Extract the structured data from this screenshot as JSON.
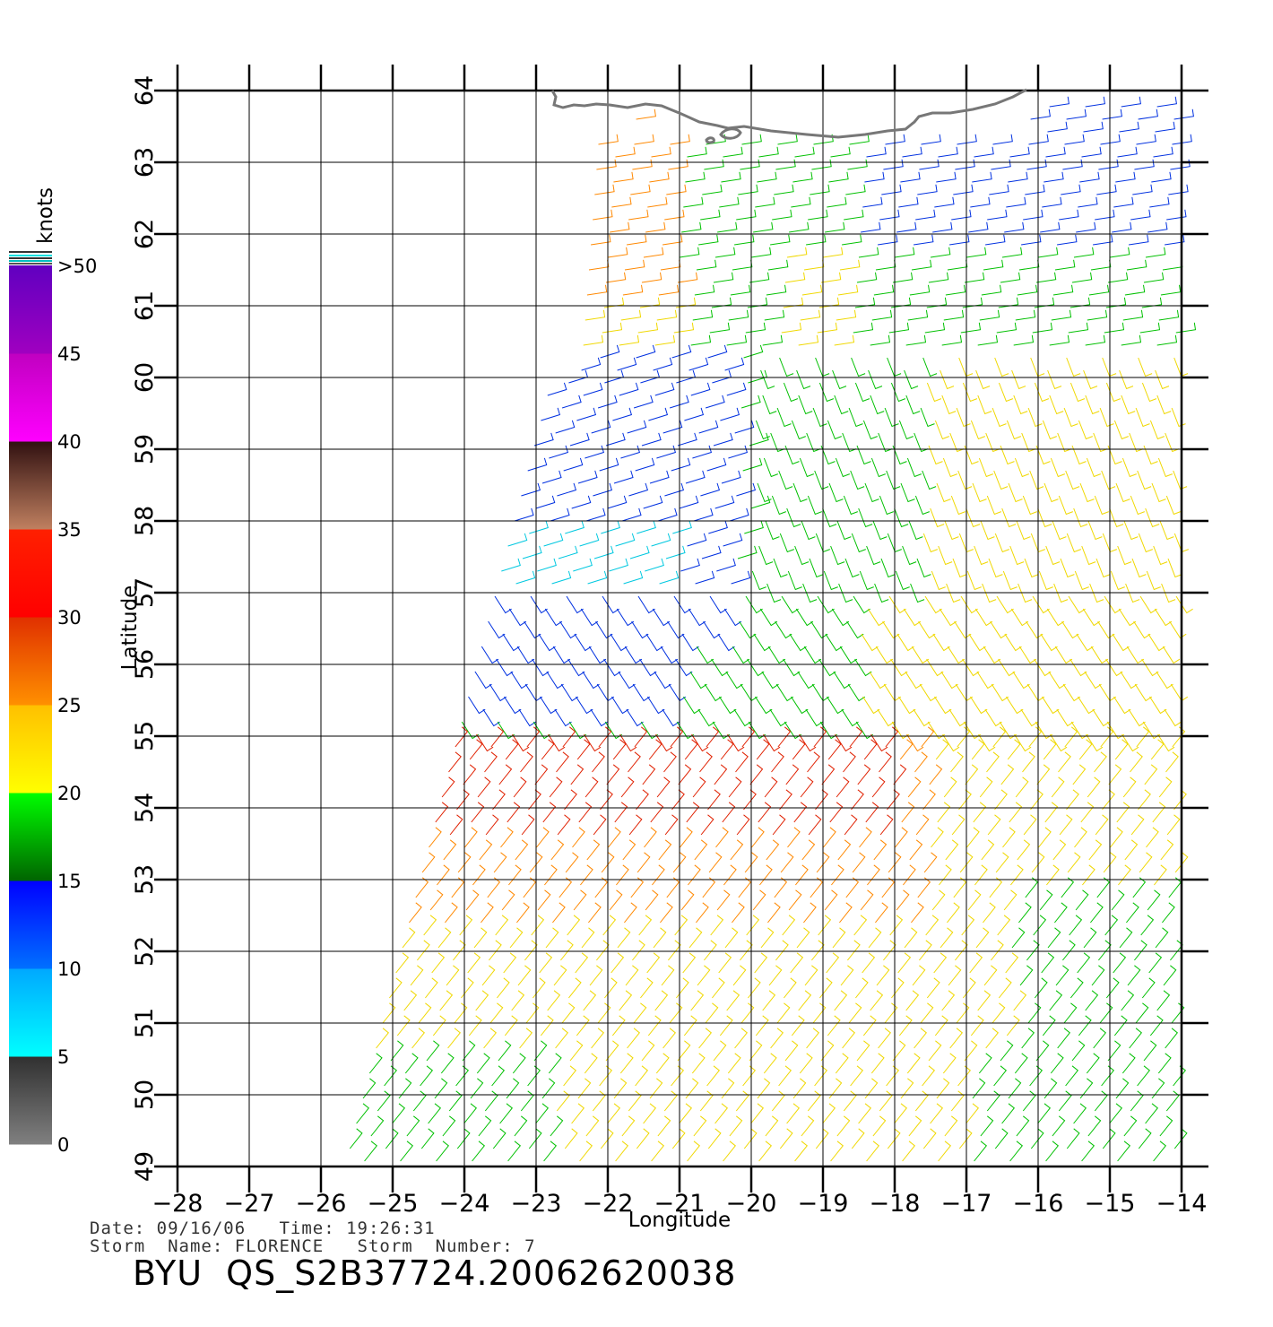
{
  "map": {
    "title": "",
    "xlabel": "Longitude",
    "ylabel": "Latitude",
    "lon_ticks": [
      -28,
      -27,
      -26,
      -25,
      -24,
      -23,
      -22,
      -21,
      -20,
      -19,
      -18,
      -17,
      -16,
      -15,
      -14
    ],
    "lat_ticks": [
      49,
      50,
      51,
      52,
      53,
      54,
      55,
      56,
      57,
      58,
      59,
      60,
      61,
      62,
      63,
      64
    ],
    "lon_range": [
      -28,
      -14
    ],
    "lat_range": [
      49,
      64
    ],
    "grid": true,
    "coastline_color": "#777777",
    "land_label": ""
  },
  "colorbar": {
    "unit_label": "knots",
    "tick_labels": [
      "0",
      "5",
      "10",
      "15",
      "20",
      "25",
      "30",
      "35",
      "40",
      "45",
      ">50"
    ],
    "segments": [
      {
        "from": 0,
        "to": 5,
        "colors": [
          "#808080",
          "#303030"
        ]
      },
      {
        "from": 5,
        "to": 10,
        "colors": [
          "#00ffff",
          "#00a8ff"
        ]
      },
      {
        "from": 10,
        "to": 15,
        "colors": [
          "#0070ff",
          "#0000ff"
        ]
      },
      {
        "from": 15,
        "to": 20,
        "colors": [
          "#006400",
          "#00ff00"
        ]
      },
      {
        "from": 20,
        "to": 25,
        "colors": [
          "#ffff00",
          "#ffc000"
        ]
      },
      {
        "from": 25,
        "to": 30,
        "colors": [
          "#ff9000",
          "#e03000"
        ]
      },
      {
        "from": 30,
        "to": 35,
        "colors": [
          "#ff0000",
          "#ff2000"
        ]
      },
      {
        "from": 35,
        "to": 40,
        "colors": [
          "#c08060",
          "#301010"
        ]
      },
      {
        "from": 40,
        "to": 45,
        "colors": [
          "#ff00ff",
          "#c000c0"
        ]
      },
      {
        "from": 45,
        "to": 50,
        "colors": [
          "#a000c0",
          "#6000c0"
        ]
      }
    ]
  },
  "wind_colors": {
    "0-5": "#404040",
    "5-10": "#00c8e0",
    "10-15": "#0030e0",
    "15-20": "#00c000",
    "20-25": "#f0d800",
    "25-30": "#ff8800",
    "30-35": "#e02000"
  },
  "footer": {
    "line1": "Date: 09/16/06   Time: 19:26:31",
    "line2": "Storm  Name: FLORENCE   Storm  Number: 7",
    "product": "BYU  QS_S2B37724.20062620038"
  }
}
